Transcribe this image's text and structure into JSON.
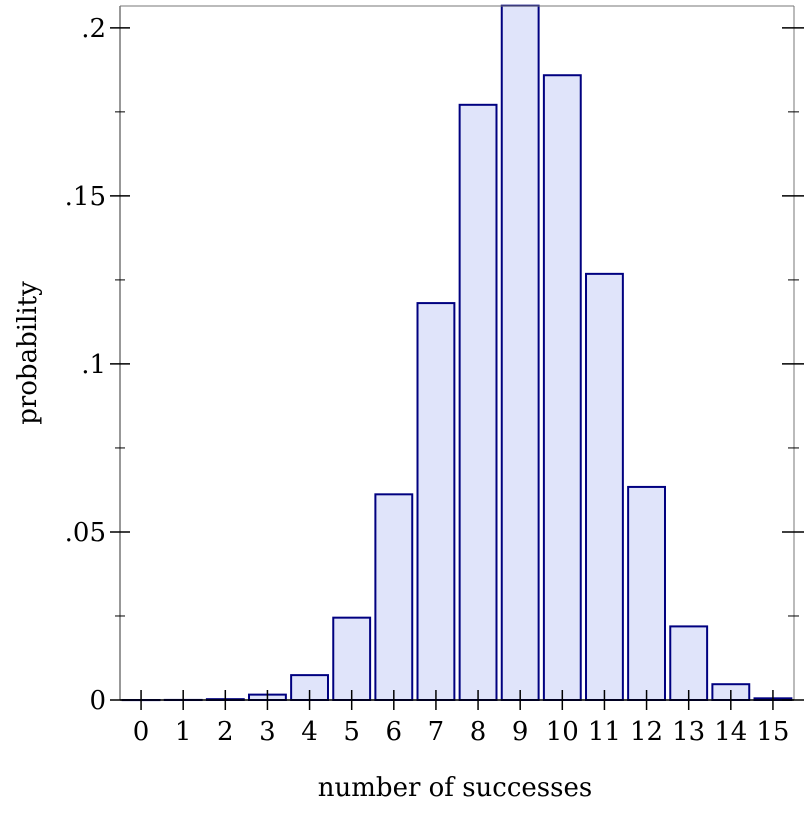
{
  "chart_data": {
    "type": "bar",
    "title": "",
    "xlabel": "number of successes",
    "ylabel": "probability",
    "categories": [
      "0",
      "1",
      "2",
      "3",
      "4",
      "5",
      "6",
      "7",
      "8",
      "9",
      "10",
      "11",
      "12",
      "13",
      "14",
      "15"
    ],
    "values": [
      1e-06,
      2.4e-05,
      0.00025,
      0.0016,
      0.0074,
      0.0245,
      0.0612,
      0.1181,
      0.1771,
      0.2066,
      0.1859,
      0.1268,
      0.0634,
      0.0219,
      0.0047,
      0.0005
    ],
    "xlim": [
      -0.5,
      15.5
    ],
    "ylim": [
      0,
      0.2065
    ],
    "yticks": [
      0,
      0.05,
      0.1,
      0.15,
      0.2
    ],
    "ytick_labels": [
      "0",
      ".05",
      ".1",
      ".15",
      ".2"
    ],
    "grid": false,
    "bar_fill": "#e0e4fa",
    "bar_stroke": "#000080"
  }
}
